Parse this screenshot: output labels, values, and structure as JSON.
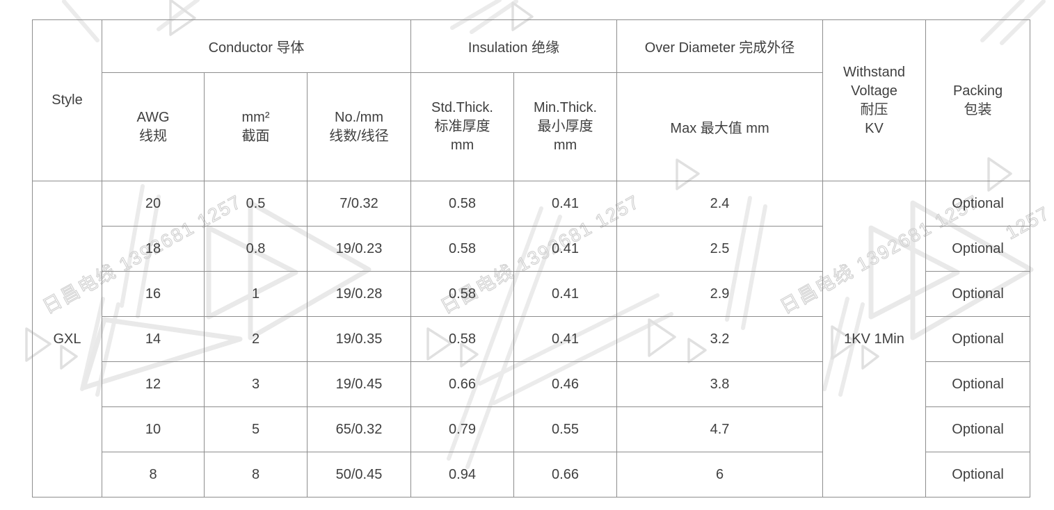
{
  "watermark": {
    "text": "日昌电线 1392681 1257",
    "fragment": "1257",
    "color": "#e9e9e9"
  },
  "table": {
    "header": {
      "style": "Style",
      "conductor_group": "Conductor 导体",
      "insulation_group": "Insulation 绝缘",
      "over_diameter_group": "Over Diameter 完成外径",
      "awg": "AWG\n线规",
      "mm2": "mm²\n截面",
      "no_mm": "No./mm\n线数/线径",
      "std_thick": "Std.Thick.\n标准厚度\nmm",
      "min_thick": "Min.Thick.\n最小厚度\nmm",
      "max": "Max 最大值 mm",
      "withstand": "Withstand\nVoltage\n耐压\nKV",
      "packing": "Packing\n包装"
    },
    "style_value": "GXL",
    "withstand_value": "1KV 1Min",
    "rows": [
      {
        "awg": "20",
        "mm2": "0.5",
        "no_mm": "7/0.32",
        "std_thick": "0.58",
        "min_thick": "0.41",
        "max": "2.4",
        "packing": "Optional"
      },
      {
        "awg": "18",
        "mm2": "0.8",
        "no_mm": "19/0.23",
        "std_thick": "0.58",
        "min_thick": "0.41",
        "max": "2.5",
        "packing": "Optional"
      },
      {
        "awg": "16",
        "mm2": "1",
        "no_mm": "19/0.28",
        "std_thick": "0.58",
        "min_thick": "0.41",
        "max": "2.9",
        "packing": "Optional"
      },
      {
        "awg": "14",
        "mm2": "2",
        "no_mm": "19/0.35",
        "std_thick": "0.58",
        "min_thick": "0.41",
        "max": "3.2",
        "packing": "Optional"
      },
      {
        "awg": "12",
        "mm2": "3",
        "no_mm": "19/0.45",
        "std_thick": "0.66",
        "min_thick": "0.46",
        "max": "3.8",
        "packing": "Optional"
      },
      {
        "awg": "10",
        "mm2": "5",
        "no_mm": "65/0.32",
        "std_thick": "0.79",
        "min_thick": "0.55",
        "max": "4.7",
        "packing": "Optional"
      },
      {
        "awg": "8",
        "mm2": "8",
        "no_mm": "50/0.45",
        "std_thick": "0.94",
        "min_thick": "0.66",
        "max": "6",
        "packing": "Optional"
      }
    ]
  }
}
